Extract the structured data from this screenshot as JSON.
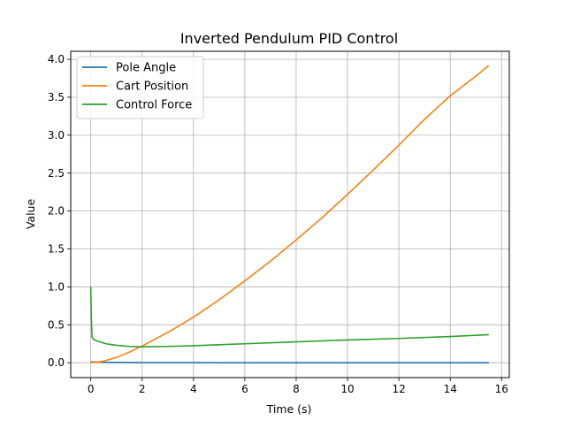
{
  "chart_data": {
    "type": "line",
    "title": "Inverted Pendulum PID Control",
    "xlabel": "Time (s)",
    "ylabel": "Value",
    "xlim": [
      -0.78,
      16.3
    ],
    "ylim": [
      -0.196,
      4.106
    ],
    "xticks": [
      0,
      2,
      4,
      6,
      8,
      10,
      12,
      14,
      16
    ],
    "xtick_labels": [
      "0",
      "2",
      "4",
      "6",
      "8",
      "10",
      "12",
      "14",
      "16"
    ],
    "yticks": [
      0.0,
      0.5,
      1.0,
      1.5,
      2.0,
      2.5,
      3.0,
      3.5,
      4.0
    ],
    "ytick_labels": [
      "0.0",
      "0.5",
      "1.0",
      "1.5",
      "2.0",
      "2.5",
      "3.0",
      "3.5",
      "4.0"
    ],
    "grid": true,
    "legend_position": "upper-left",
    "series": [
      {
        "name": "Pole Angle",
        "color": "#1f77b4",
        "x": [
          0,
          0.5,
          1,
          2,
          4,
          6,
          8,
          10,
          12,
          14,
          15.5
        ],
        "y": [
          0.01,
          0.006,
          0.004,
          0.002,
          0.001,
          0.0,
          0.0,
          0.0,
          0.0,
          0.0,
          0.0
        ]
      },
      {
        "name": "Cart Position",
        "color": "#ff7f0e",
        "x": [
          0,
          0.3,
          0.5,
          1,
          1.5,
          2,
          2.5,
          3,
          4,
          5,
          6,
          7,
          8,
          9,
          10,
          11,
          12,
          13,
          14,
          15,
          15.5
        ],
        "y": [
          0.0,
          0.01,
          0.02,
          0.07,
          0.14,
          0.22,
          0.31,
          0.4,
          0.6,
          0.83,
          1.08,
          1.34,
          1.62,
          1.91,
          2.22,
          2.54,
          2.87,
          3.21,
          3.52,
          3.78,
          3.92
        ]
      },
      {
        "name": "Control Force",
        "color": "#2ca02c",
        "x": [
          0,
          0.02,
          0.05,
          0.1,
          0.3,
          0.6,
          1.0,
          1.5,
          2.0,
          3,
          4,
          6,
          8,
          10,
          12,
          14,
          15.5
        ],
        "y": [
          1.0,
          0.6,
          0.34,
          0.31,
          0.28,
          0.25,
          0.23,
          0.215,
          0.21,
          0.215,
          0.225,
          0.25,
          0.275,
          0.3,
          0.32,
          0.345,
          0.37
        ]
      }
    ]
  }
}
